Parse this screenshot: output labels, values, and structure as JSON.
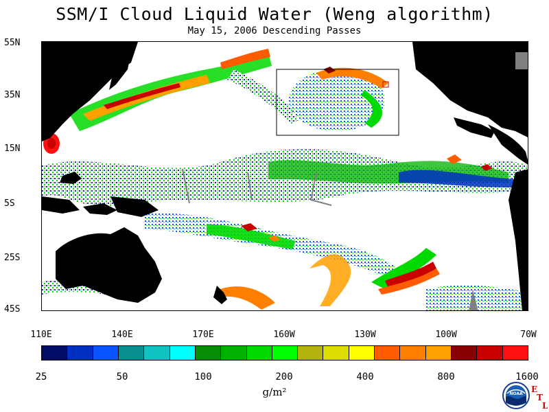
{
  "header": {
    "title": "SSM/I Cloud Liquid Water (Weng algorithm)",
    "subtitle": "May 15, 2006  Descending Passes"
  },
  "map": {
    "lat_labels": [
      "55N",
      "35N",
      "15N",
      "5S",
      "25S",
      "45S"
    ],
    "lon_labels": [
      "110E",
      "140E",
      "170E",
      "160W",
      "130W",
      "100W",
      "70W"
    ],
    "extent": {
      "lon_west": "110E",
      "lon_east": "70W",
      "lat_north": "55N",
      "lat_south": "45S"
    },
    "land_color": "#000000",
    "missing_color": "#808080",
    "no_cloud_color": "#ffffff"
  },
  "legend": {
    "colors": [
      "#000c66",
      "#0030c2",
      "#0a55ff",
      "#088f8f",
      "#11c2c2",
      "#00ffff",
      "#078c07",
      "#00b200",
      "#00d900",
      "#00ff00",
      "#b3b30f",
      "#dddd00",
      "#ffff00",
      "#ff5b00",
      "#ff7f00",
      "#ffa000",
      "#860000",
      "#c80000",
      "#ff1010"
    ],
    "tick_labels": [
      "25",
      "50",
      "100",
      "200",
      "400",
      "800",
      "1600"
    ],
    "units": "g/m²"
  },
  "logo": {
    "name": "NOAA",
    "etl_letters": [
      "E",
      "T",
      "L"
    ]
  }
}
